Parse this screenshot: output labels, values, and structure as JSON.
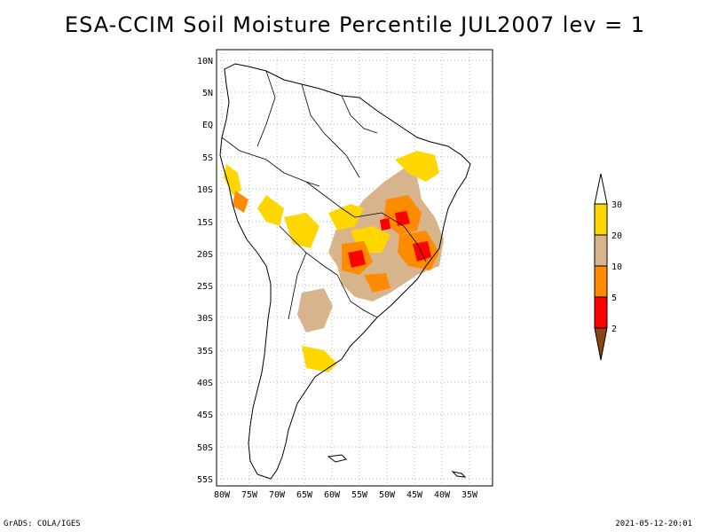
{
  "title": "ESA-CCIM Soil Moisture Percentile JUL2007 lev = 1",
  "footer": {
    "left": "GrADS: COLA/IGES",
    "right": "2021-05-12-20:01"
  },
  "map": {
    "lat_labels": [
      "10N",
      "5N",
      "EQ",
      "5S",
      "10S",
      "15S",
      "20S",
      "25S",
      "30S",
      "35S",
      "40S",
      "45S",
      "50S",
      "55S"
    ],
    "lon_labels": [
      "80W",
      "75W",
      "70W",
      "65W",
      "60W",
      "55W",
      "50W",
      "45W",
      "40W",
      "35W"
    ]
  },
  "colorbar": {
    "labels": [
      "30",
      "20",
      "10",
      "5",
      "2"
    ],
    "colors": {
      "above_30": "#ffffff",
      "20_30": "#ffd700",
      "10_20": "#d8b48c",
      "5_10": "#ff8c00",
      "2_5": "#ff0000",
      "below_2": "#8b4513"
    }
  }
}
